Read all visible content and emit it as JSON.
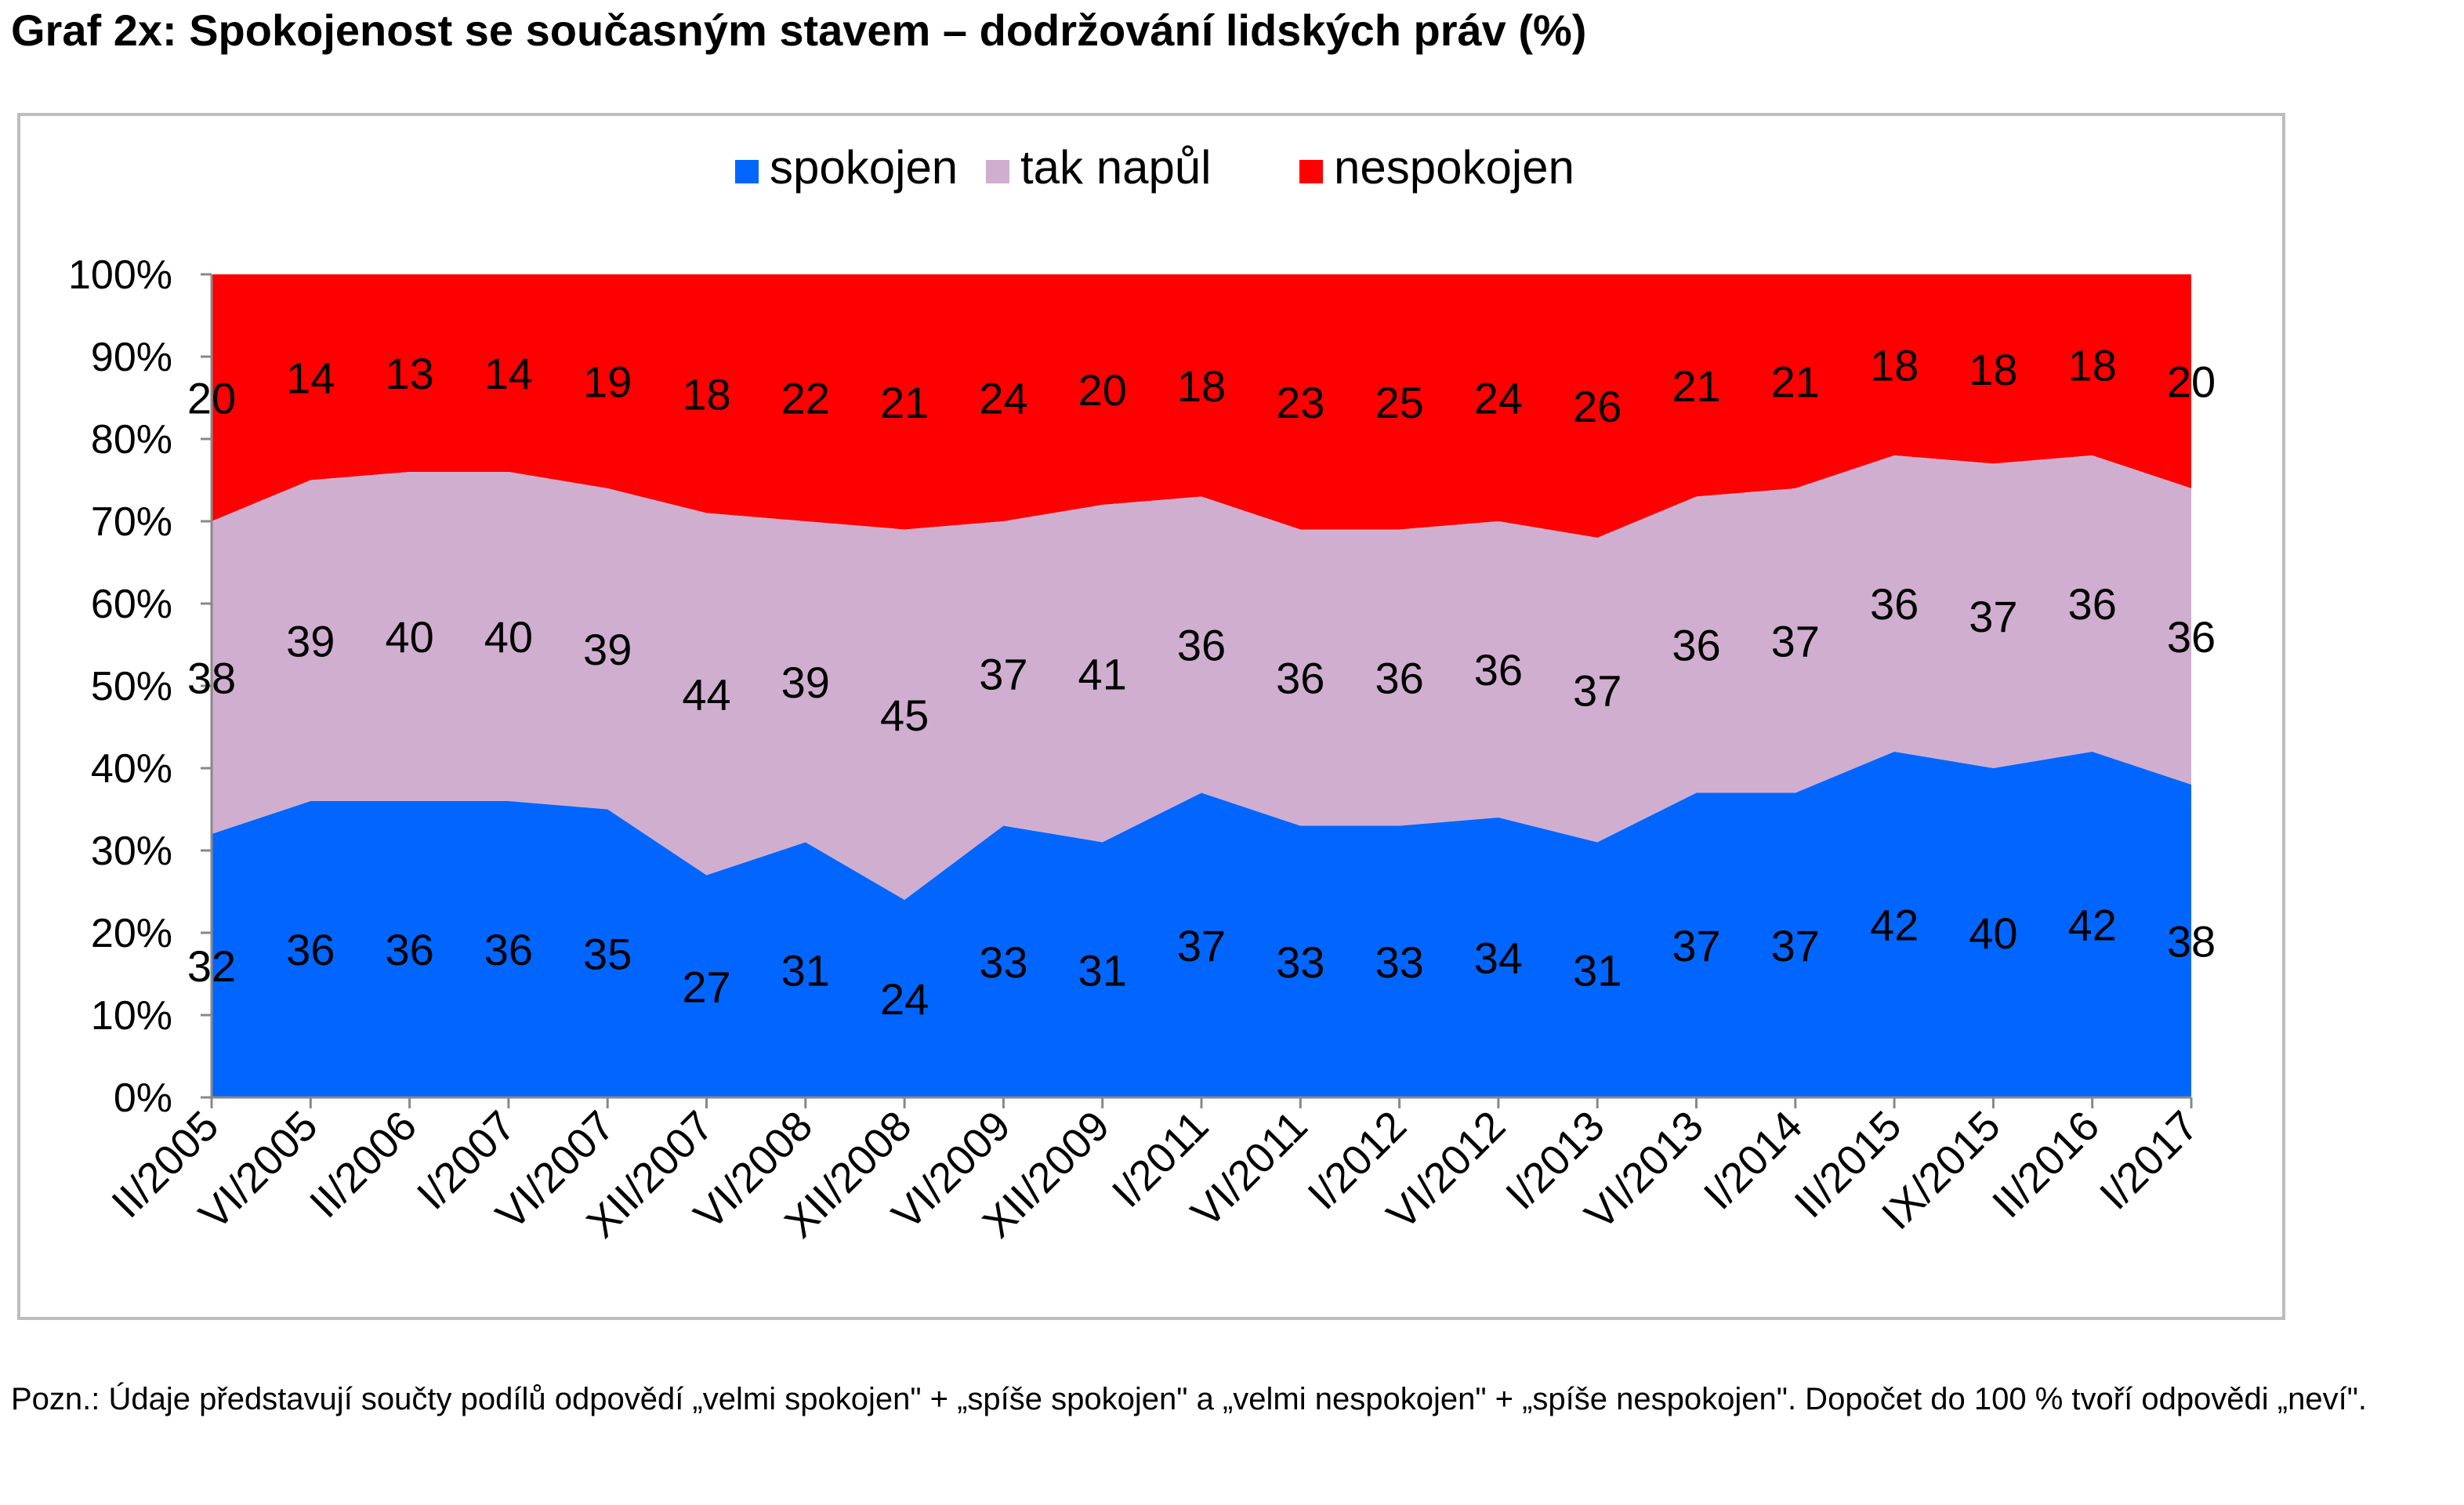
{
  "title": "Graf 2x: Spokojenost se současným stavem – dodržování lidských práv (%)",
  "footnote": "Pozn.: Údaje představují součty podílů odpovědí „velmi spokojen\" + „spíše spokojen\" a „velmi nespokojen\" + „spíše nespokojen\". Dopočet do 100 % tvoří odpovědi „neví\".",
  "colors": {
    "spokojen": "#0066ff",
    "tak_napul": "#d0aed0",
    "nespokojen": "#ff0000",
    "frame": "#bdbdbd",
    "axis": "#888888"
  },
  "chart_data": {
    "type": "area",
    "stacked": true,
    "normalized_100": true,
    "legend_position": "top-center",
    "grid": false,
    "ylim": [
      0,
      100
    ],
    "y_ticks": [
      "0%",
      "10%",
      "20%",
      "30%",
      "40%",
      "50%",
      "60%",
      "70%",
      "80%",
      "90%",
      "100%"
    ],
    "categories": [
      "II/2005",
      "VI/2005",
      "II/2006",
      "I/2007",
      "VI/2007",
      "XII/2007",
      "VI/2008",
      "XII/2008",
      "VI/2009",
      "XII/2009",
      "I/2011",
      "VI/2011",
      "I/2012",
      "VI/2012",
      "I/2013",
      "VI/2013",
      "I/2014",
      "II/2015",
      "IX/2015",
      "II/2016",
      "I/2017"
    ],
    "series": [
      {
        "name": "spokojen",
        "color": "#0066ff",
        "values": [
          32,
          36,
          36,
          36,
          35,
          27,
          31,
          24,
          33,
          31,
          37,
          33,
          33,
          34,
          31,
          37,
          37,
          42,
          40,
          42,
          38
        ]
      },
      {
        "name": "tak napůl",
        "color": "#d0aed0",
        "values": [
          38,
          39,
          40,
          40,
          39,
          44,
          39,
          45,
          37,
          41,
          36,
          36,
          36,
          36,
          37,
          36,
          37,
          36,
          37,
          36,
          36
        ]
      },
      {
        "name": "nespokojen",
        "color": "#ff0000",
        "values": [
          20,
          14,
          13,
          14,
          19,
          18,
          22,
          21,
          24,
          20,
          18,
          23,
          25,
          24,
          26,
          21,
          21,
          18,
          18,
          18,
          20
        ]
      }
    ]
  }
}
